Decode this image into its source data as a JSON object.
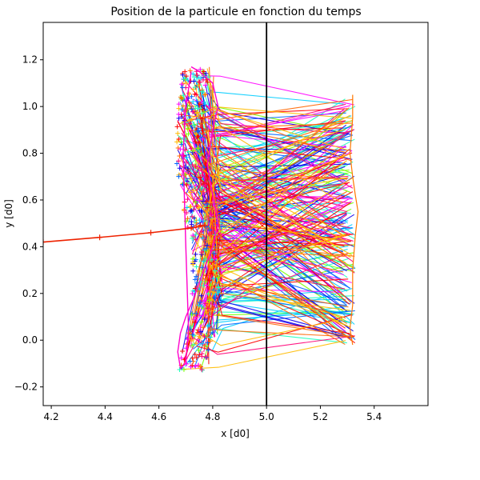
{
  "chart_data": {
    "type": "line",
    "title": "Position de la particule en fonction du temps",
    "xlabel": "x [d0]",
    "ylabel": "y [d0]",
    "xlim": [
      4.17,
      5.6
    ],
    "ylim": [
      -0.28,
      1.36
    ],
    "x_ticks": [
      "4.2",
      "4.4",
      "4.6",
      "4.8",
      "5.0",
      "5.2",
      "5.4"
    ],
    "x_tick_values": [
      4.2,
      4.4,
      4.6,
      4.8,
      5.0,
      5.2,
      5.4
    ],
    "y_ticks": [
      "−0.2",
      "0.0",
      "0.2",
      "0.4",
      "0.6",
      "0.8",
      "1.0",
      "1.2"
    ],
    "y_tick_values": [
      -0.2,
      0.0,
      0.2,
      0.4,
      0.6,
      0.8,
      1.0,
      1.2
    ],
    "grid": false,
    "legend": "none",
    "marker": "+",
    "vertical_line": {
      "x": 5.0,
      "color": "#000000"
    },
    "colors": {
      "incoming": "#ee2200",
      "palette": [
        "#77ff00",
        "#22ffbb",
        "#00ccff",
        "#0066ff",
        "#1100ee",
        "#ff00ff",
        "#ff0077",
        "#ff0000",
        "#ff6600",
        "#ffbb00"
      ]
    },
    "series": [
      {
        "role": "incoming",
        "x": [
          4.17,
          4.38,
          4.57,
          4.72,
          4.77
        ],
        "y": [
          0.42,
          0.44,
          0.46,
          0.48,
          0.49
        ]
      },
      {
        "role": "cloud_boundary",
        "x": [
          4.72,
          4.75,
          4.8,
          4.82,
          4.8,
          4.78,
          4.8,
          4.82,
          4.8,
          4.76,
          4.73,
          4.7,
          4.68,
          4.67,
          4.68,
          4.7,
          4.71,
          4.7,
          4.69,
          4.7,
          4.72
        ],
        "y": [
          1.17,
          1.15,
          1.1,
          1.0,
          0.9,
          0.75,
          0.62,
          0.5,
          0.4,
          0.28,
          0.18,
          0.1,
          0.03,
          -0.05,
          -0.12,
          -0.1,
          0.05,
          0.4,
          0.8,
          1.0,
          1.15
        ]
      },
      {
        "role": "right_envelope",
        "x": [
          5.32,
          5.32,
          5.31,
          5.32,
          5.33,
          5.34,
          5.33,
          5.32,
          5.32,
          5.31,
          5.32
        ],
        "y": [
          1.05,
          0.95,
          0.8,
          0.7,
          0.62,
          0.55,
          0.45,
          0.3,
          0.15,
          0.05,
          -0.02
        ]
      }
    ],
    "y_range_left": [
      -0.13,
      1.17
    ],
    "y_range_right": [
      -0.02,
      1.05
    ]
  }
}
